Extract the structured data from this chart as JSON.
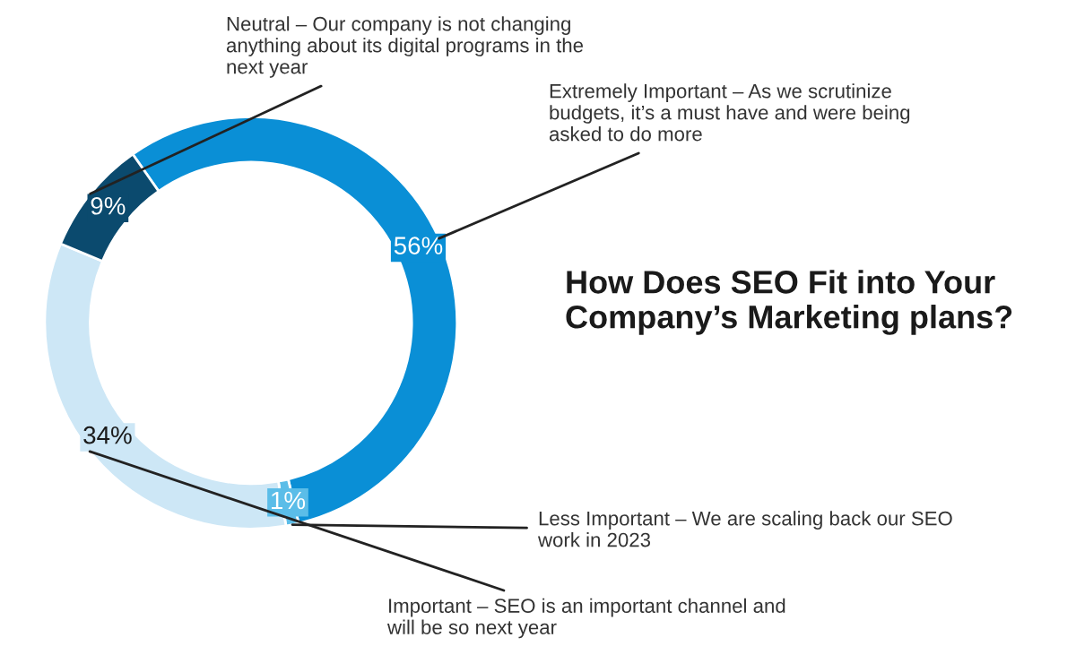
{
  "chart_data": {
    "type": "donut",
    "title": "How Does SEO Fit into Your Company’s Marketing plans?",
    "categories": [
      "Extremely Important – As we scrutinize budgets, it’s a must have and were being asked to do more",
      "Less Important – We are scaling back our SEO work in 2023",
      "Important – SEO is an important channel and will be so next year",
      "Neutral – Our company is not changing anything about its digital programs in the next year"
    ],
    "values": [
      56,
      1,
      34,
      9
    ],
    "value_labels": [
      "56%",
      "1%",
      "34%",
      "9%"
    ],
    "colors": [
      "#0a8fd6",
      "#5bbde8",
      "#cde7f6",
      "#0b4a6e"
    ]
  }
}
